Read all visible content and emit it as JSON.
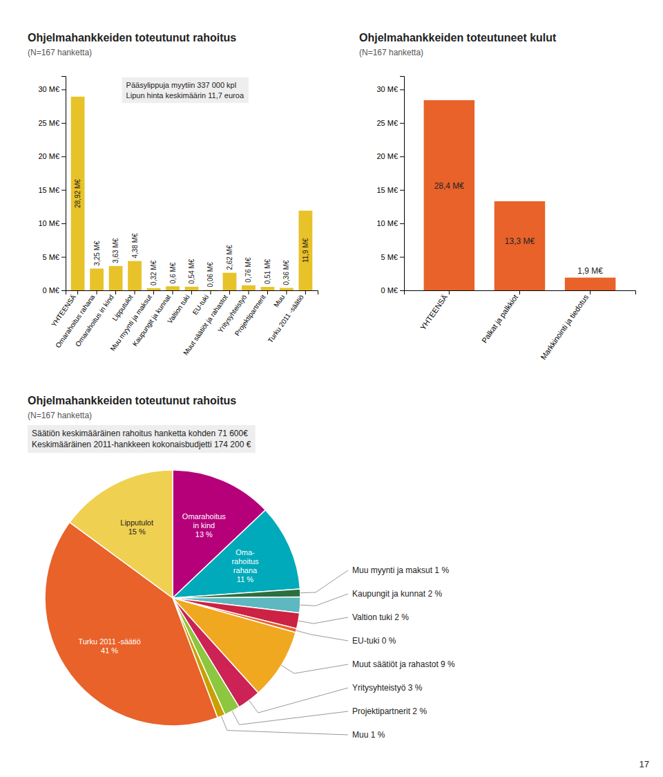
{
  "page_number": "17",
  "chart_data": [
    {
      "type": "bar",
      "title": "Ohjelmahankkeiden toteutunut rahoitus",
      "subtitle": "(N=167 hanketta)",
      "annotation": "Pääsylippuja myytiin 337 000 kpl\nLipun hinta keskimäärin 11,7 euroa",
      "categories": [
        "YHTEENSÄ",
        "Omarahoitus rahana",
        "Omarahoitus in kind",
        "Lipputulot",
        "Muu myynti ja maksut",
        "Kaupungit ja kunnat",
        "Valtion tuki",
        "EU-tuki",
        "Muut säätiöt ja rahastot",
        "Yritysyhteistyö",
        "Projektipartnerit",
        "Muu",
        "Turku 2011 -säätiö"
      ],
      "values": [
        28.92,
        3.25,
        3.63,
        4.38,
        0.32,
        0.6,
        0.54,
        0.06,
        2.62,
        0.76,
        0.51,
        0.36,
        11.9
      ],
      "value_labels": [
        "28,92 M€",
        "3,25 M€",
        "3,63 M€",
        "4,38 M€",
        "0,32 M€",
        "0,6 M€",
        "0,54 M€",
        "0,06 M€",
        "2,62 M€",
        "0,76 M€",
        "0,51 M€",
        "0,36 M€",
        "11,9 M€"
      ],
      "data_labels": true,
      "color": "#e8c229",
      "ylim": [
        0,
        32
      ],
      "yticks": [
        {
          "value": 0,
          "label": "0 M€"
        },
        {
          "value": 5,
          "label": "5 M€"
        },
        {
          "value": 10,
          "label": "10 M€"
        },
        {
          "value": 15,
          "label": "15 M€"
        },
        {
          "value": 20,
          "label": "20 M€"
        },
        {
          "value": 25,
          "label": "25 M€"
        },
        {
          "value": 30,
          "label": "30 M€"
        }
      ]
    },
    {
      "type": "bar",
      "title": "Ohjelmahankkeiden toteutuneet kulut",
      "subtitle": "(N=167 hanketta)",
      "categories": [
        "YHTEENSÄ",
        "Palkat ja palkkiot",
        "Markkinointi ja tiedotus"
      ],
      "values": [
        28.4,
        13.3,
        1.9
      ],
      "value_labels": [
        "28,4 M€",
        "13,3 M€",
        "1,9 M€"
      ],
      "data_labels": true,
      "color": "#e8622a",
      "ylim": [
        0,
        32
      ],
      "yticks": [
        {
          "value": 0,
          "label": "0 M€"
        },
        {
          "value": 5,
          "label": "5 M€"
        },
        {
          "value": 10,
          "label": "10 M€"
        },
        {
          "value": 15,
          "label": "15 M€"
        },
        {
          "value": 20,
          "label": "20 M€"
        },
        {
          "value": 25,
          "label": "25 M€"
        },
        {
          "value": 30,
          "label": "30 M€"
        }
      ]
    },
    {
      "type": "pie",
      "title": "Ohjelmahankkeiden toteutunut rahoitus",
      "subtitle": "(N=167 hanketta)",
      "annotation": "Säätiön keskimääräinen rahoitus hanketta kohden 71 600€\nKeskimääräinen 2011-hankkeen kokonaisbudjetti 174 200 €",
      "values": [
        13,
        11,
        1,
        2,
        2,
        0.5,
        9,
        3,
        2,
        1,
        41,
        15
      ],
      "colors": [
        "#b5007a",
        "#00aabb",
        "#2d6e3e",
        "#5db8c0",
        "#cc2244",
        "#e8622a",
        "#f0a820",
        "#cc2255",
        "#8dc63f",
        "#c8a000",
        "#e8622a",
        "#f0d050"
      ],
      "value_labels": [
        "Omarahoitus\nin kind\n13 %",
        "Oma-\nrahoitus\nrahana\n11 %",
        null,
        null,
        null,
        null,
        null,
        null,
        null,
        null,
        "Turku 2011 -säätiö\n41 %",
        "Lipputulot\n15 %"
      ],
      "external_labels": [
        null,
        null,
        "Muu myynti ja maksut 1 %",
        "Kaupungit ja kunnat 2 %",
        "Valtion tuki 2 %",
        "EU-tuki 0 %",
        "Muut säätiöt ja rahastot 9 %",
        "Yritysyhteistyö 3 %",
        "Projektipartnerit 2 %",
        "Muu 1 %",
        null,
        null
      ],
      "data_labels": true
    }
  ]
}
